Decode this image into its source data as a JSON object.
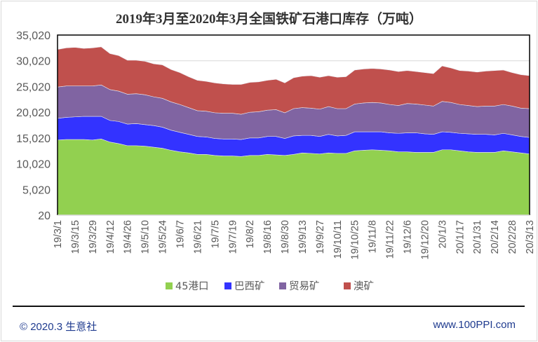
{
  "chart_data": {
    "type": "area",
    "stacked": true,
    "title": "2019年3月至2020年3月全国铁矿石港口库存（万吨）",
    "xlabel": "",
    "ylabel": "",
    "ylim": [
      20,
      35020
    ],
    "yticks": [
      "20",
      "5,020",
      "10,020",
      "15,020",
      "20,020",
      "25,020",
      "30,020",
      "35,020"
    ],
    "ytick_values": [
      20,
      5020,
      10020,
      15020,
      20020,
      25020,
      30020,
      35020
    ],
    "grid": true,
    "legend": "bottom",
    "xtick_labels": [
      "19/3/1",
      "19/3/15",
      "19/3/29",
      "19/4/12",
      "19/4/26",
      "19/5/10",
      "19/5/24",
      "19/6/7",
      "19/6/21",
      "19/7/5",
      "19/7/19",
      "19/8/2",
      "19/8/16",
      "19/8/30",
      "19/9/13",
      "19/9/27",
      "19/10/11",
      "19/10/25",
      "19/11/8",
      "19/11/22",
      "19/12/6",
      "19/12/20",
      "20/1/3",
      "20/1/17",
      "20/1/31",
      "20/2/14",
      "20/2/28",
      "20/3/13"
    ],
    "x_interval": "weekly",
    "series": [
      {
        "name": "45港口",
        "color": "#92D050",
        "values": [
          14600,
          14700,
          14700,
          14700,
          14600,
          14800,
          14200,
          13900,
          13500,
          13500,
          13400,
          13200,
          13000,
          12600,
          12300,
          12100,
          11800,
          11800,
          11600,
          11500,
          11500,
          11400,
          11600,
          11600,
          11800,
          11700,
          11600,
          11800,
          12100,
          12000,
          11900,
          12100,
          12000,
          12000,
          12500,
          12600,
          12700,
          12600,
          12500,
          12300,
          12300,
          12200,
          12200,
          12200,
          12700,
          12700,
          12500,
          12300,
          12200,
          12200,
          12200,
          12500,
          12300,
          12100,
          11900
        ]
      },
      {
        "name": "巴西矿",
        "color": "#3333FF",
        "values": [
          4200,
          4300,
          4400,
          4500,
          4600,
          4400,
          4200,
          4300,
          4200,
          4300,
          4200,
          4200,
          4100,
          3900,
          3800,
          3600,
          3500,
          3400,
          3300,
          3300,
          3300,
          3300,
          3400,
          3400,
          3500,
          3600,
          3300,
          3600,
          3400,
          3500,
          3400,
          3600,
          3400,
          3500,
          3700,
          3600,
          3500,
          3600,
          3500,
          3600,
          3700,
          3800,
          3600,
          3500,
          3500,
          3400,
          3400,
          3500,
          3500,
          3500,
          3400,
          3400,
          3300,
          3200,
          3200
        ]
      },
      {
        "name": "贸易矿",
        "color": "#8064A2",
        "values": [
          6100,
          6100,
          6000,
          5900,
          5900,
          6100,
          6000,
          5900,
          5800,
          5800,
          5800,
          5600,
          5600,
          5500,
          5400,
          5200,
          5000,
          5000,
          5000,
          5000,
          5000,
          4900,
          5000,
          5100,
          5100,
          5200,
          5000,
          5300,
          5400,
          5300,
          5300,
          5400,
          5300,
          5200,
          5400,
          5600,
          5700,
          5600,
          5500,
          5400,
          5700,
          5600,
          5600,
          5500,
          5900,
          5800,
          5600,
          5500,
          5400,
          5500,
          5600,
          5600,
          5600,
          5500,
          5600
        ]
      },
      {
        "name": "澳矿",
        "color": "#C0504D",
        "values": [
          7300,
          7400,
          7500,
          7300,
          7400,
          7400,
          7000,
          6900,
          6600,
          6500,
          6500,
          6400,
          6500,
          6300,
          6200,
          6000,
          5900,
          5800,
          5800,
          5700,
          5600,
          5800,
          5800,
          5800,
          5800,
          5900,
          5800,
          6000,
          6100,
          6300,
          6200,
          6000,
          6100,
          6200,
          6600,
          6600,
          6600,
          6600,
          6700,
          6600,
          6400,
          6300,
          6300,
          6300,
          6900,
          6700,
          6600,
          6700,
          6700,
          6800,
          6900,
          6700,
          6500,
          6500,
          6400
        ]
      }
    ]
  },
  "footer": {
    "copyright": "© 2020.3 生意社",
    "website": "www.100PPI.com"
  }
}
